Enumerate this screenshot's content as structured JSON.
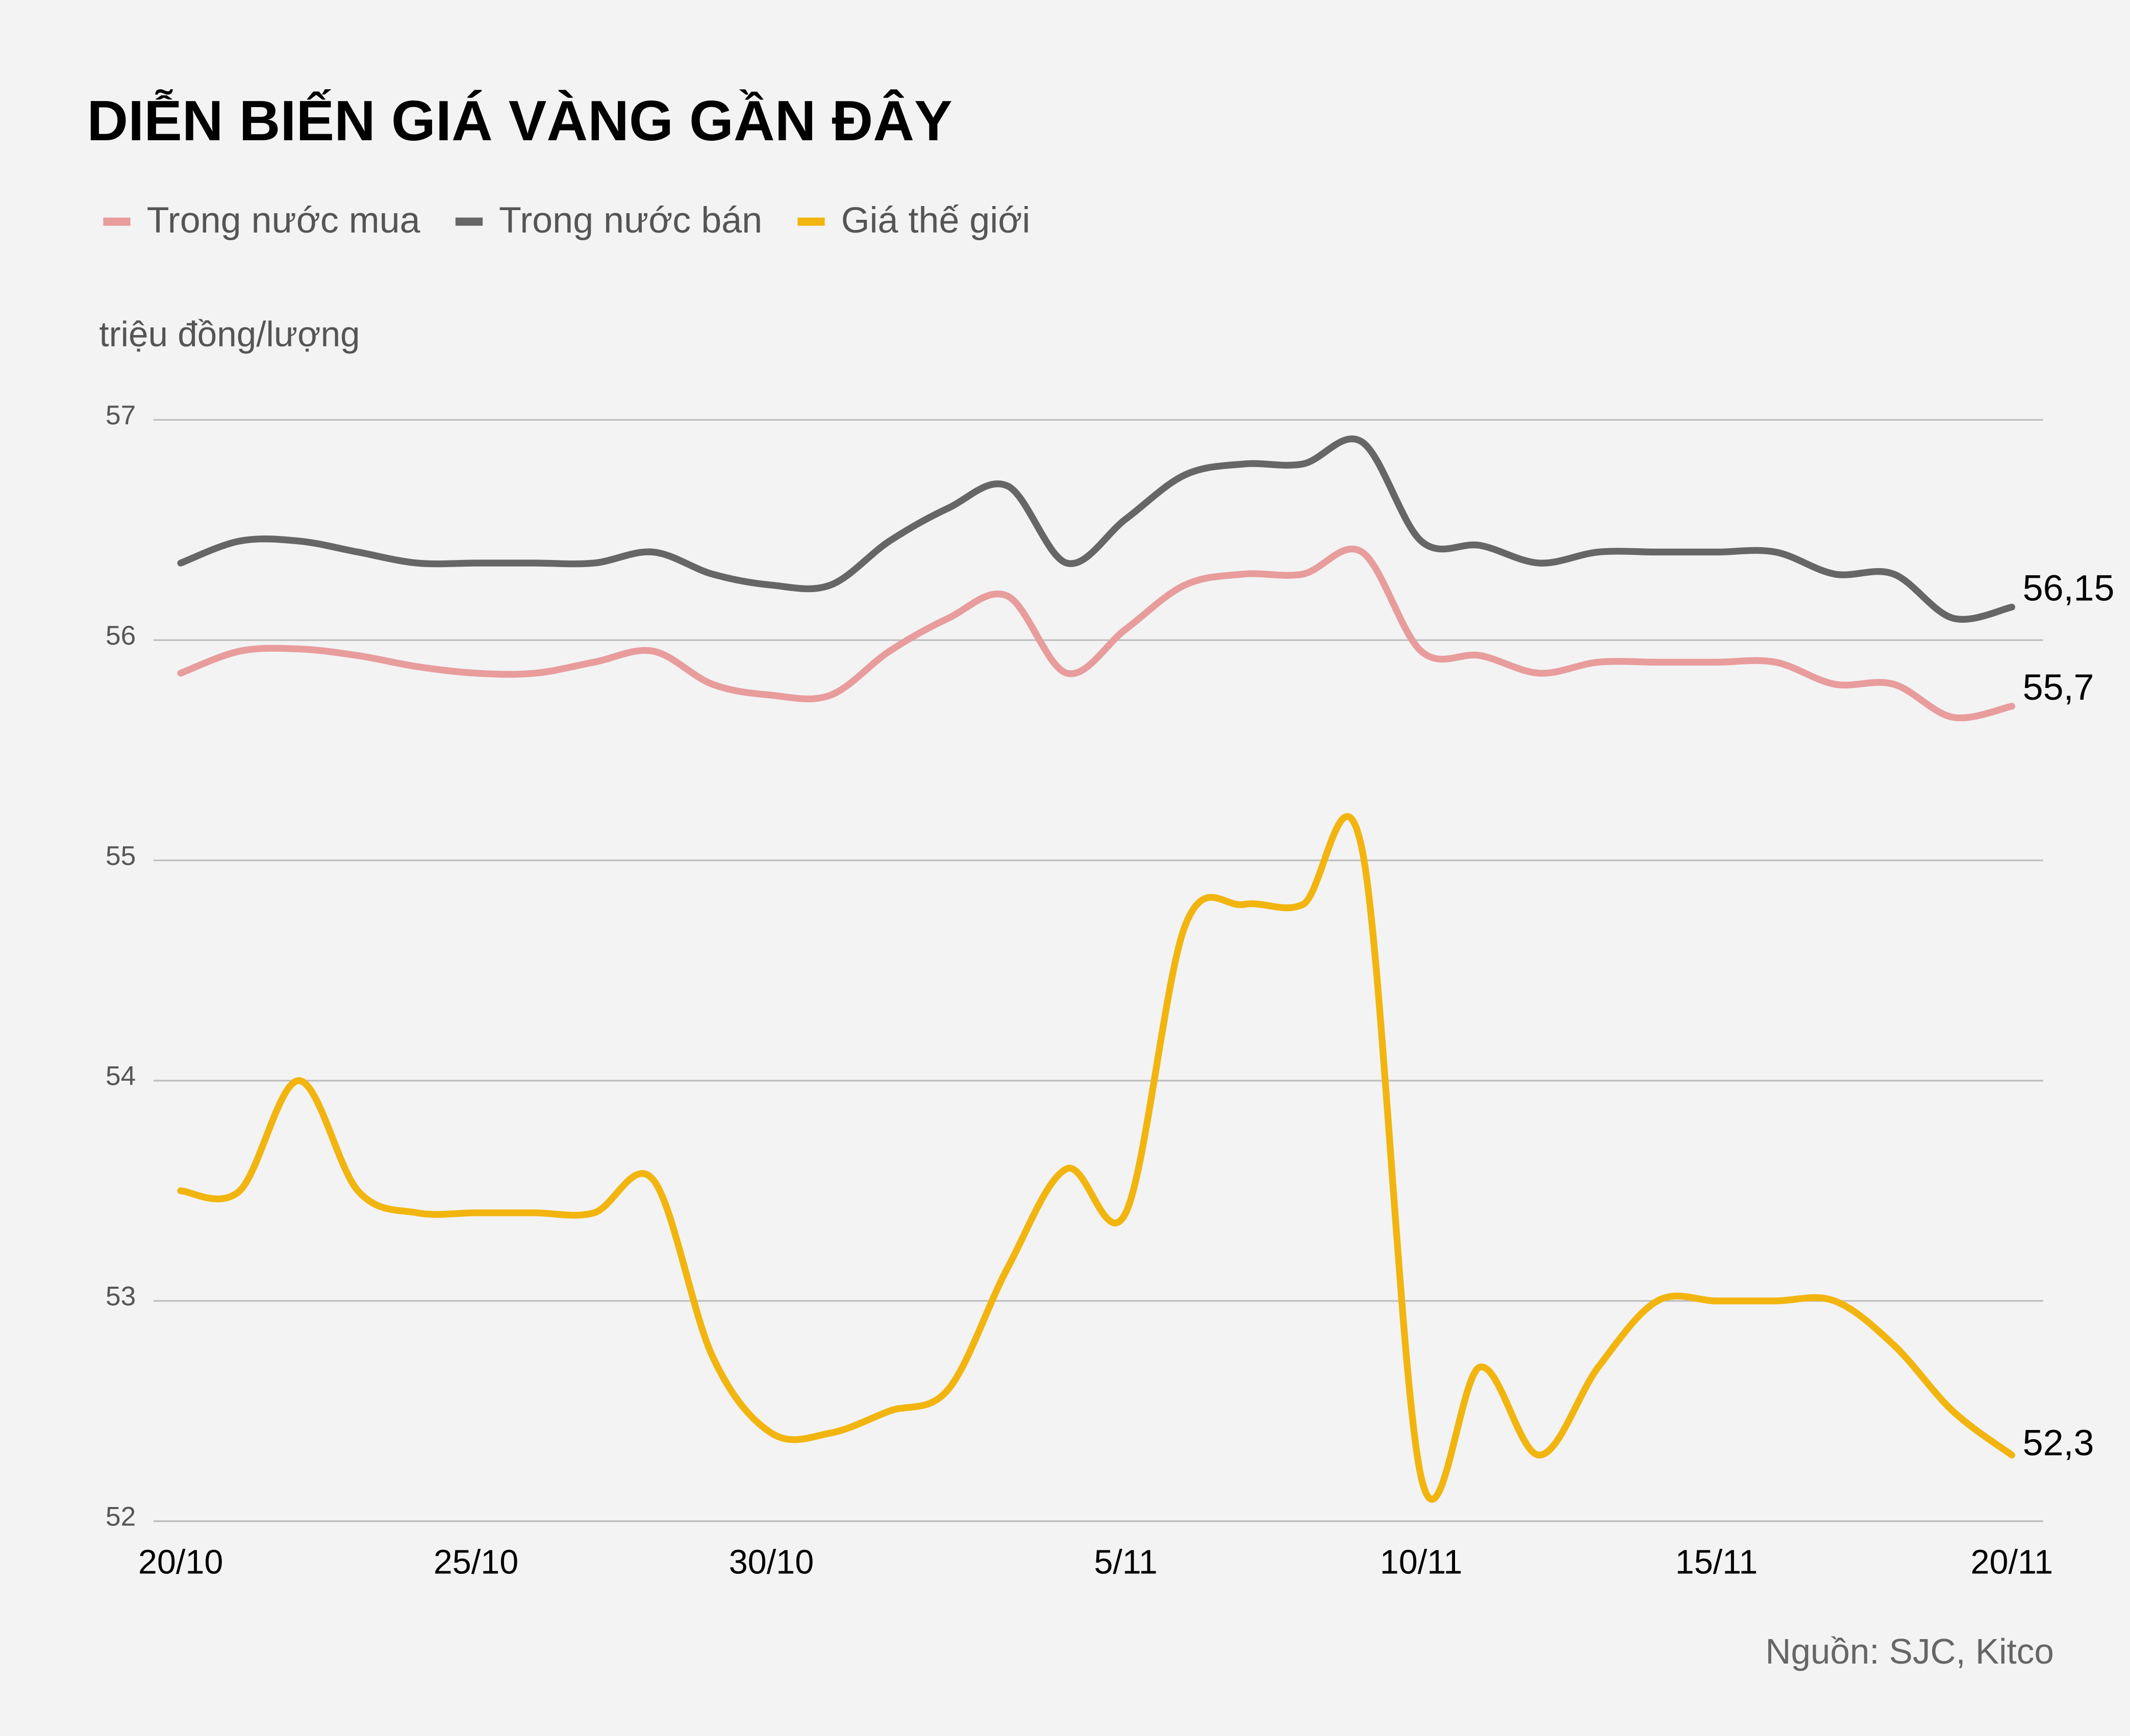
{
  "chart_data": {
    "type": "line",
    "title": "DIỄN BIẾN GIÁ VÀNG GẦN ĐÂY",
    "y_label": "triệu đồng/lượng",
    "source": "Nguồn: SJC, Kitco",
    "categories": [
      "20/10",
      null,
      null,
      null,
      null,
      "25/10",
      null,
      null,
      null,
      null,
      "30/10",
      null,
      null,
      null,
      null,
      null,
      "5/11",
      null,
      null,
      null,
      null,
      "10/11",
      null,
      null,
      null,
      null,
      "15/11",
      null,
      null,
      null,
      null,
      "20/11"
    ],
    "series": [
      {
        "name": "Trong nước mua",
        "color": "#e89c9c",
        "values": [
          55.85,
          55.95,
          55.96,
          55.93,
          55.88,
          55.85,
          55.85,
          55.9,
          55.95,
          55.8,
          55.75,
          55.75,
          55.95,
          56.1,
          56.2,
          55.85,
          56.05,
          56.25,
          56.3,
          56.3,
          56.4,
          55.95,
          55.93,
          55.85,
          55.9,
          55.9,
          55.9,
          55.9,
          55.8,
          55.8,
          55.65,
          55.7
        ],
        "value_labels": [
          null,
          null,
          null,
          null,
          null,
          null,
          null,
          null,
          null,
          null,
          null,
          null,
          null,
          null,
          null,
          null,
          null,
          null,
          null,
          null,
          null,
          null,
          null,
          null,
          null,
          null,
          null,
          null,
          null,
          null,
          null,
          "55,7"
        ]
      },
      {
        "name": "Trong nước bán",
        "color": "#666666",
        "values": [
          56.35,
          56.45,
          56.45,
          56.4,
          56.35,
          56.35,
          56.35,
          56.35,
          56.4,
          56.3,
          56.25,
          56.25,
          56.45,
          56.6,
          56.7,
          56.35,
          56.55,
          56.75,
          56.8,
          56.8,
          56.9,
          56.45,
          56.43,
          56.35,
          56.4,
          56.4,
          56.4,
          56.4,
          56.3,
          56.3,
          56.1,
          56.15
        ],
        "value_labels": [
          null,
          null,
          null,
          null,
          null,
          null,
          null,
          null,
          null,
          null,
          null,
          null,
          null,
          null,
          null,
          null,
          null,
          null,
          null,
          null,
          null,
          null,
          null,
          null,
          null,
          null,
          null,
          null,
          null,
          null,
          null,
          "56,15"
        ]
      },
      {
        "name": "Giá thế giới",
        "color": "#f2b50f",
        "values": [
          53.5,
          53.5,
          54.0,
          53.5,
          53.4,
          53.4,
          53.4,
          53.4,
          53.55,
          52.75,
          52.4,
          52.4,
          52.5,
          52.6,
          53.15,
          53.6,
          53.4,
          54.7,
          54.8,
          54.8,
          55.05,
          52.2,
          52.7,
          52.3,
          52.7,
          53.0,
          53.0,
          53.0,
          53.0,
          52.8,
          52.5,
          52.3
        ],
        "value_labels": [
          null,
          null,
          null,
          null,
          null,
          null,
          null,
          null,
          null,
          null,
          null,
          null,
          null,
          null,
          null,
          null,
          null,
          null,
          null,
          null,
          null,
          null,
          null,
          null,
          null,
          null,
          null,
          null,
          null,
          null,
          null,
          "52,3"
        ]
      }
    ],
    "ylim": [
      52,
      57
    ],
    "yticks": [
      52,
      53,
      54,
      55,
      56,
      57
    ],
    "grid": true
  }
}
